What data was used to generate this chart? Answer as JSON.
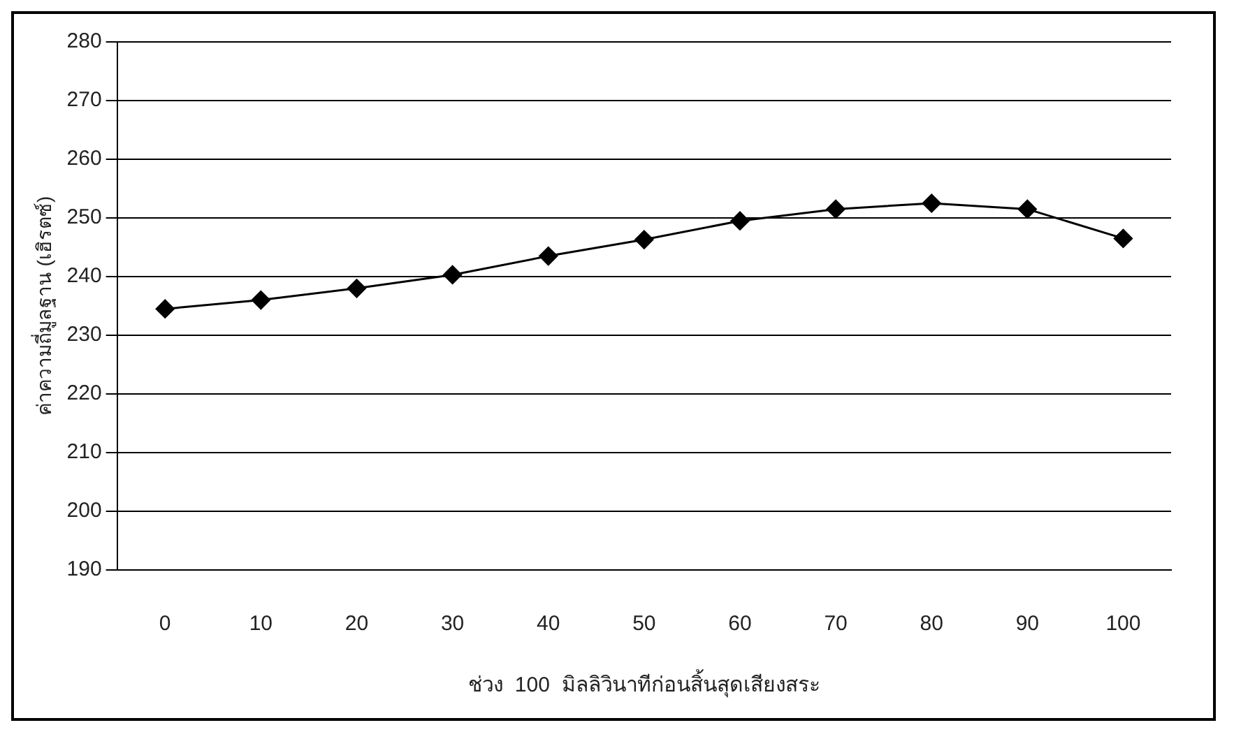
{
  "chart_data": {
    "type": "line",
    "xlabel": "ช่วง  100  มิลลิวินาทีก่อนสิ้นสุดเสียงสระ",
    "ylabel": "ค่าความถี่มูลฐาน (เฮิรตซ์)",
    "categories": [
      "0",
      "10",
      "20",
      "30",
      "40",
      "50",
      "60",
      "70",
      "80",
      "90",
      "100"
    ],
    "series": [
      {
        "color": "#000000",
        "values": [
          234.5,
          236,
          238,
          240.3,
          243.5,
          246.3,
          249.5,
          251.5,
          252.5,
          251.5,
          246.5
        ]
      }
    ],
    "ylim": [
      190,
      280
    ],
    "yticks": [
      190,
      200,
      210,
      220,
      230,
      240,
      250,
      260,
      270,
      280
    ],
    "grid": "y",
    "legend": false,
    "marker": "diamond",
    "line_style": "solid"
  }
}
